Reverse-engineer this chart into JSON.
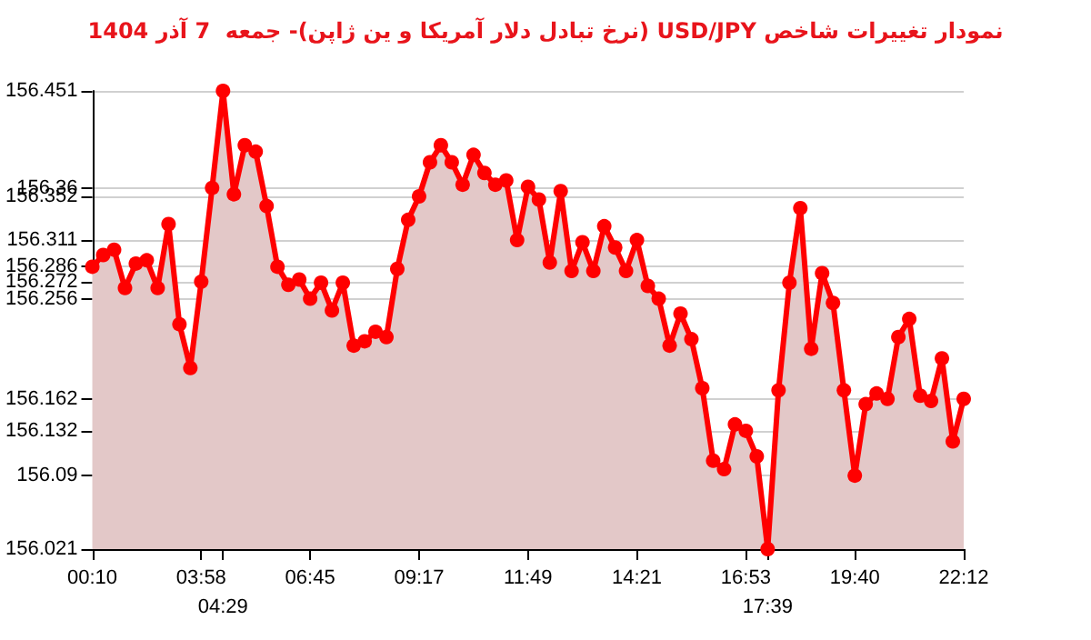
{
  "chart_data": {
    "type": "area",
    "title": "نمودار تغییرات شاخص USD/JPY (نرخ تبادل دلار آمریکا و ین ژاپن)- جمعه  7 آذر 1404",
    "categories": [
      "00:10",
      null,
      null,
      null,
      null,
      null,
      null,
      null,
      null,
      null,
      "03:58",
      null,
      "04:29",
      null,
      null,
      null,
      null,
      null,
      null,
      null,
      "06:45",
      null,
      null,
      null,
      null,
      null,
      null,
      null,
      null,
      null,
      "09:17",
      null,
      null,
      null,
      null,
      null,
      null,
      null,
      null,
      null,
      "11:49",
      null,
      null,
      null,
      null,
      null,
      null,
      null,
      null,
      null,
      "14:21",
      null,
      null,
      null,
      null,
      null,
      null,
      null,
      null,
      null,
      "16:53",
      null,
      "17:39",
      null,
      null,
      null,
      null,
      null,
      null,
      null,
      "19:40",
      null,
      null,
      null,
      null,
      null,
      null,
      null,
      null,
      null,
      "22:12"
    ],
    "series": [
      {
        "color": "#ff0000",
        "values": [
          156.286,
          156.297,
          156.302,
          156.266,
          156.289,
          156.292,
          156.266,
          156.326,
          156.232,
          156.191,
          156.272,
          156.36,
          156.451,
          156.354,
          156.4,
          156.394,
          156.343,
          156.286,
          156.269,
          156.274,
          156.256,
          156.271,
          156.245,
          156.271,
          156.212,
          156.216,
          156.225,
          156.22,
          156.284,
          156.33,
          156.352,
          156.384,
          156.4,
          156.384,
          156.363,
          156.391,
          156.374,
          156.363,
          156.367,
          156.311,
          156.361,
          156.349,
          156.29,
          156.357,
          156.282,
          156.309,
          156.282,
          156.324,
          156.304,
          156.282,
          156.311,
          156.268,
          156.256,
          156.212,
          156.242,
          156.218,
          156.172,
          156.104,
          156.096,
          156.138,
          156.132,
          156.108,
          156.021,
          156.17,
          156.271,
          156.341,
          156.209,
          156.28,
          156.252,
          156.17,
          156.09,
          156.157,
          156.167,
          156.162,
          156.22,
          156.237,
          156.165,
          156.16,
          156.2,
          156.122,
          156.162
        ]
      }
    ],
    "ylim": [
      156.021,
      156.451
    ],
    "yticks": [
      156.021,
      156.09,
      156.132,
      156.162,
      156.256,
      156.272,
      156.286,
      156.311,
      156.352,
      156.36,
      156.451
    ],
    "grid": "y",
    "marker": "circle",
    "line_style": "solid"
  }
}
